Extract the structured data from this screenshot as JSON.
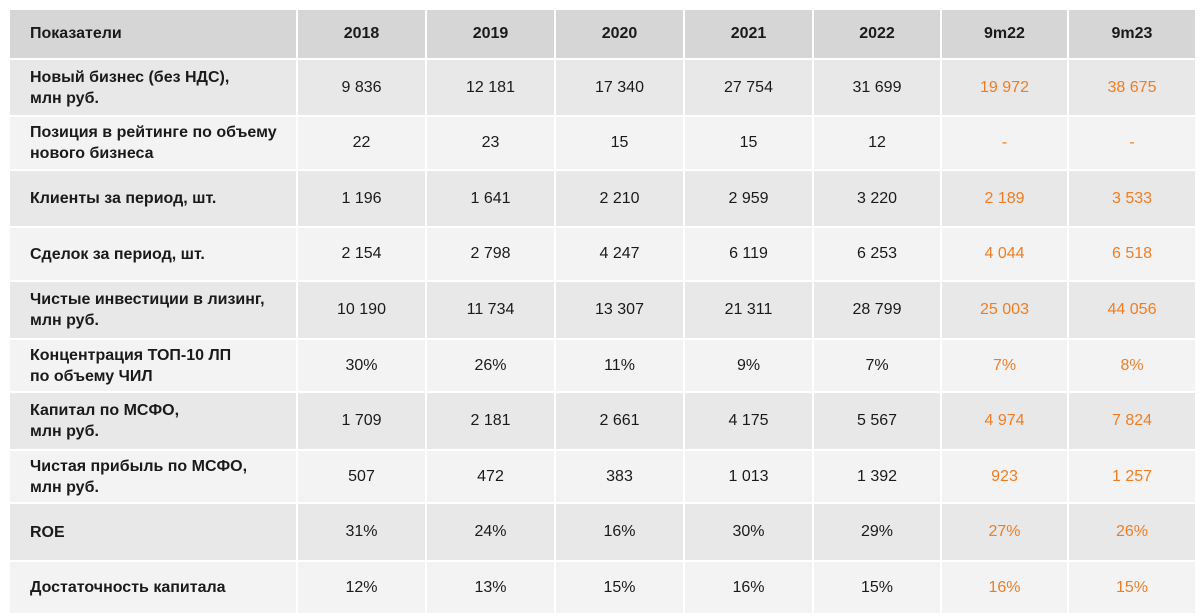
{
  "colors": {
    "header_bg": "#d6d6d6",
    "row_bg_a": "#e8e8e8",
    "row_bg_b": "#f3f3f3",
    "text": "#1a1a1a",
    "accent": "#f07d22"
  },
  "table": {
    "headers": [
      "Показатели",
      "2018",
      "2019",
      "2020",
      "2021",
      "2022",
      "9m22",
      "9m23"
    ],
    "rows": [
      {
        "label": "Новый бизнес (без НДС),\nмлн руб.",
        "values": [
          "9 836",
          "12 181",
          "17 340",
          "27 754",
          "31 699",
          "19 972",
          "38 675"
        ]
      },
      {
        "label": "Позиция в рейтинге по объему\nнового бизнеса",
        "values": [
          "22",
          "23",
          "15",
          "15",
          "12",
          "-",
          "-"
        ]
      },
      {
        "label": "Клиенты за период, шт.",
        "values": [
          "1 196",
          "1 641",
          "2 210",
          "2 959",
          "3 220",
          "2 189",
          "3 533"
        ]
      },
      {
        "label": "Сделок за период, шт.",
        "values": [
          "2 154",
          "2 798",
          "4 247",
          "6 119",
          "6 253",
          "4 044",
          "6 518"
        ]
      },
      {
        "label": "Чистые инвестиции в лизинг,\nмлн руб.",
        "values": [
          "10 190",
          "11 734",
          "13 307",
          "21 311",
          "28 799",
          "25 003",
          "44 056"
        ]
      },
      {
        "label": "Концентрация ТОП-10 ЛП\nпо объему ЧИЛ",
        "values": [
          "30%",
          "26%",
          "11%",
          "9%",
          "7%",
          "7%",
          "8%"
        ]
      },
      {
        "label": "Капитал по МСФО,\nмлн руб.",
        "values": [
          "1 709",
          "2 181",
          "2 661",
          "4 175",
          "5 567",
          "4 974",
          "7 824"
        ]
      },
      {
        "label": "Чистая прибыль по МСФО,\nмлн руб.",
        "values": [
          "507",
          "472",
          "383",
          "1 013",
          "1 392",
          "923",
          "1 257"
        ]
      },
      {
        "label": "ROE",
        "values": [
          "31%",
          "24%",
          "16%",
          "30%",
          "29%",
          "27%",
          "26%"
        ]
      },
      {
        "label": "Достаточность капитала",
        "values": [
          "12%",
          "13%",
          "15%",
          "16%",
          "15%",
          "16%",
          "15%"
        ]
      }
    ]
  }
}
